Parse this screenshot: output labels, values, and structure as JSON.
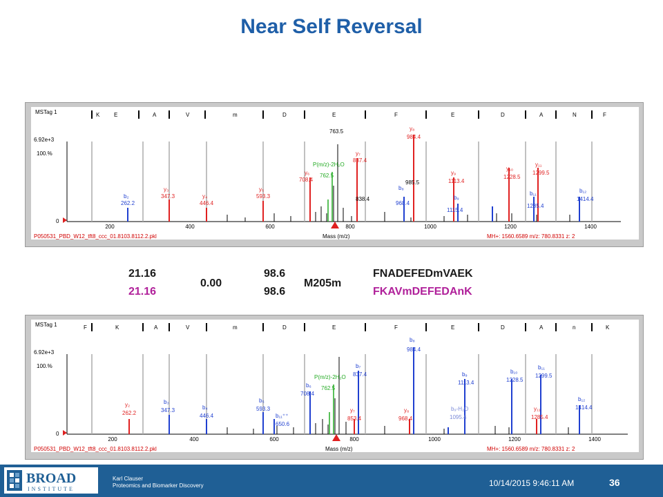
{
  "title": "Near Self Reversal",
  "spectrum_top": {
    "tag_label": "MSTag 1",
    "seq_letters": [
      "K",
      "E",
      "A",
      "V",
      "m",
      "D",
      "E",
      "F",
      "E",
      "D",
      "A",
      "N",
      "F"
    ],
    "max_intensity": "6.92e+3",
    "percent_label": "100.%",
    "zero_label": "0",
    "x_ticks": [
      "200",
      "400",
      "600",
      "800",
      "1000",
      "1200",
      "1400"
    ],
    "xlabel": "Mass (m/z)",
    "file_label": "P050531_PBD_W12_tft8_ccc_01.8103.8112.2.pkl",
    "mh_label": "MH+: 1560.6589  m/z: 780.8331  z: 2"
  },
  "spectrum_bottom": {
    "tag_label": "MSTag 1",
    "seq_letters": [
      "F",
      "K",
      "A",
      "V",
      "m",
      "D",
      "E",
      "F",
      "E",
      "D",
      "A",
      "n",
      "K"
    ],
    "max_intensity": "6.92e+3",
    "percent_label": "100.%",
    "zero_label": "0",
    "x_ticks": [
      "200",
      "400",
      "600",
      "800",
      "1000",
      "1200",
      "1400"
    ],
    "xlabel": "Mass (m/z)",
    "file_label": "P050531_PBD_W12_tft8_ccc_01.8103.8112.2.pkl",
    "mh_label": "MH+: 1560.6589  m/z: 780.8331  z: 2"
  },
  "middle": {
    "score_a": "21.16",
    "score_b": "21.16",
    "delta": "0.00",
    "pct_a": "98.6",
    "pct_b": "98.6",
    "mod": "M205m",
    "seq_a": "FNADEFEDmVAEK",
    "seq_b": "FKAVmDEFEDAnK",
    "colors": {
      "seq_a": "#1a1a1a",
      "seq_b": "#b0209a"
    }
  },
  "footer": {
    "logo_top": "BROAD",
    "logo_bottom": "INSTITUTE",
    "name": "Karl Clauser",
    "dept": "Proteomics and Biomarker Discovery",
    "datetime": "10/14/2015 9:46:11 AM",
    "page": "36"
  }
}
